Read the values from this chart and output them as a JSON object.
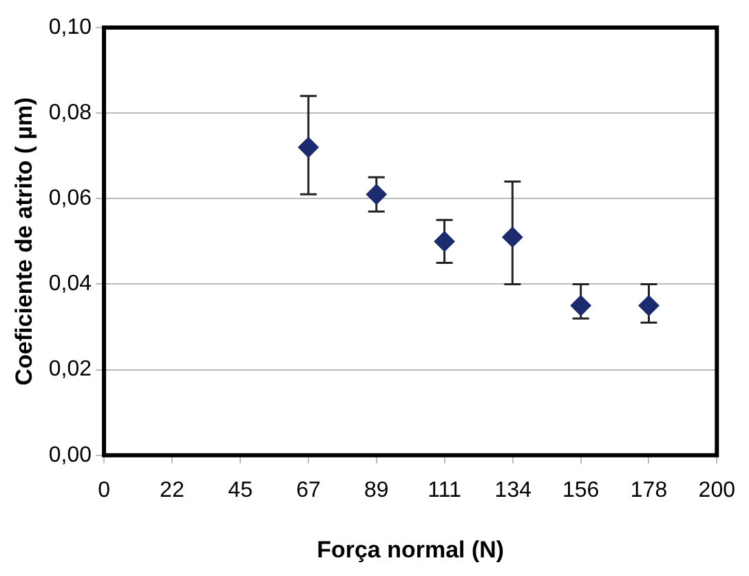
{
  "chart_data": {
    "type": "scatter",
    "xlabel": "Força normal (N)",
    "ylabel": "Coeficiente de atrito ( µm)",
    "x": [
      66.7,
      88.9,
      111.1,
      133.3,
      155.6,
      177.8
    ],
    "series": [
      {
        "color": "#1c2a6e",
        "values": [
          0.072,
          0.061,
          0.05,
          0.051,
          0.035,
          0.035
        ],
        "errors": [
          [
            0.061,
            0.084
          ],
          [
            0.057,
            0.065
          ],
          [
            0.045,
            0.055
          ],
          [
            0.04,
            0.064
          ],
          [
            0.032,
            0.04
          ],
          [
            0.031,
            0.04
          ]
        ]
      }
    ],
    "xlim": [
      0,
      200
    ],
    "xticks": [
      0,
      {
        "value": 22.2,
        "label": "22"
      },
      {
        "value": 44.5,
        "label": "45"
      },
      {
        "value": 66.7,
        "label": "67"
      },
      {
        "value": 88.9,
        "label": "89"
      },
      {
        "value": 111.1,
        "label": "111"
      },
      {
        "value": 133.5,
        "label": "134"
      },
      {
        "value": 155.6,
        "label": "156"
      },
      {
        "value": 177.8,
        "label": "178"
      },
      200
    ],
    "ylim": [
      0,
      0.1
    ],
    "yticks": [
      {
        "value": 0,
        "label": "0,00"
      },
      {
        "value": 0.02,
        "label": "0,02"
      },
      {
        "value": 0.04,
        "label": "0,04"
      },
      {
        "value": 0.06,
        "label": "0,06"
      },
      {
        "value": 0.08,
        "label": "0,08"
      },
      {
        "value": 0.1,
        "label": "0,10"
      }
    ],
    "grid": "y",
    "legend": false,
    "marker": "diamond"
  }
}
